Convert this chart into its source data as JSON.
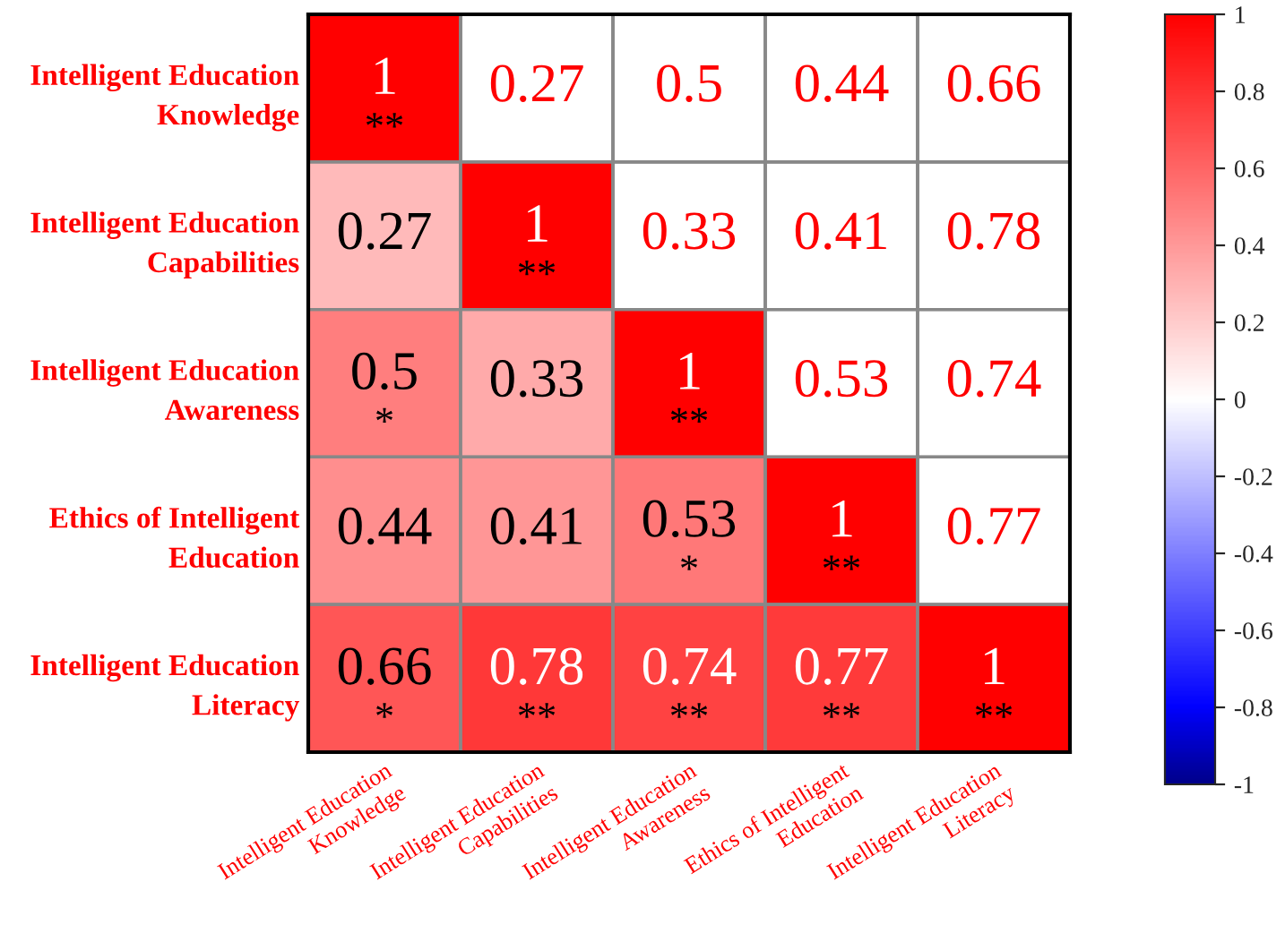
{
  "chart_data": {
    "type": "heatmap",
    "categories": [
      "Intelligent Education\nKnowledge",
      "Intelligent Education\nCapabilities",
      "Intelligent Education\nAwareness",
      "Ethics of Intelligent\nEducation",
      "Intelligent Education\nLiteracy"
    ],
    "y_categories": [
      "Intelligent Education\nKnowledge",
      "Intelligent Education\nCapabilities",
      "Intelligent Education\nAwareness",
      "Ethics of Intelligent\nEducation",
      "Intelligent Education\nLiteracy"
    ],
    "cells": [
      [
        1,
        null,
        null,
        null,
        null
      ],
      [
        0.27,
        1,
        null,
        null,
        null
      ],
      [
        0.5,
        0.33,
        1,
        null,
        null
      ],
      [
        0.44,
        0.41,
        0.53,
        1,
        null
      ],
      [
        0.66,
        0.78,
        0.74,
        0.77,
        1
      ]
    ],
    "cell_labels": [
      [
        "1\n**",
        "0.27",
        "0.5",
        "0.44",
        "0.66"
      ],
      [
        "0.27",
        "1\n**",
        "0.33",
        "0.41",
        "0.78"
      ],
      [
        "0.5\n*",
        "0.33",
        "1\n**",
        "0.53",
        "0.74"
      ],
      [
        "0.44",
        "0.41",
        "0.53\n*",
        "1\n**",
        "0.77"
      ],
      [
        "0.66\n*",
        "0.78\n**",
        "0.74\n**",
        "0.77\n**",
        "1\n**"
      ]
    ],
    "clim": [
      -1,
      1
    ],
    "cticks": [
      -1,
      -0.8,
      -0.6,
      -0.4,
      -0.2,
      0,
      0.2,
      0.4,
      0.6,
      0.8,
      1
    ]
  }
}
